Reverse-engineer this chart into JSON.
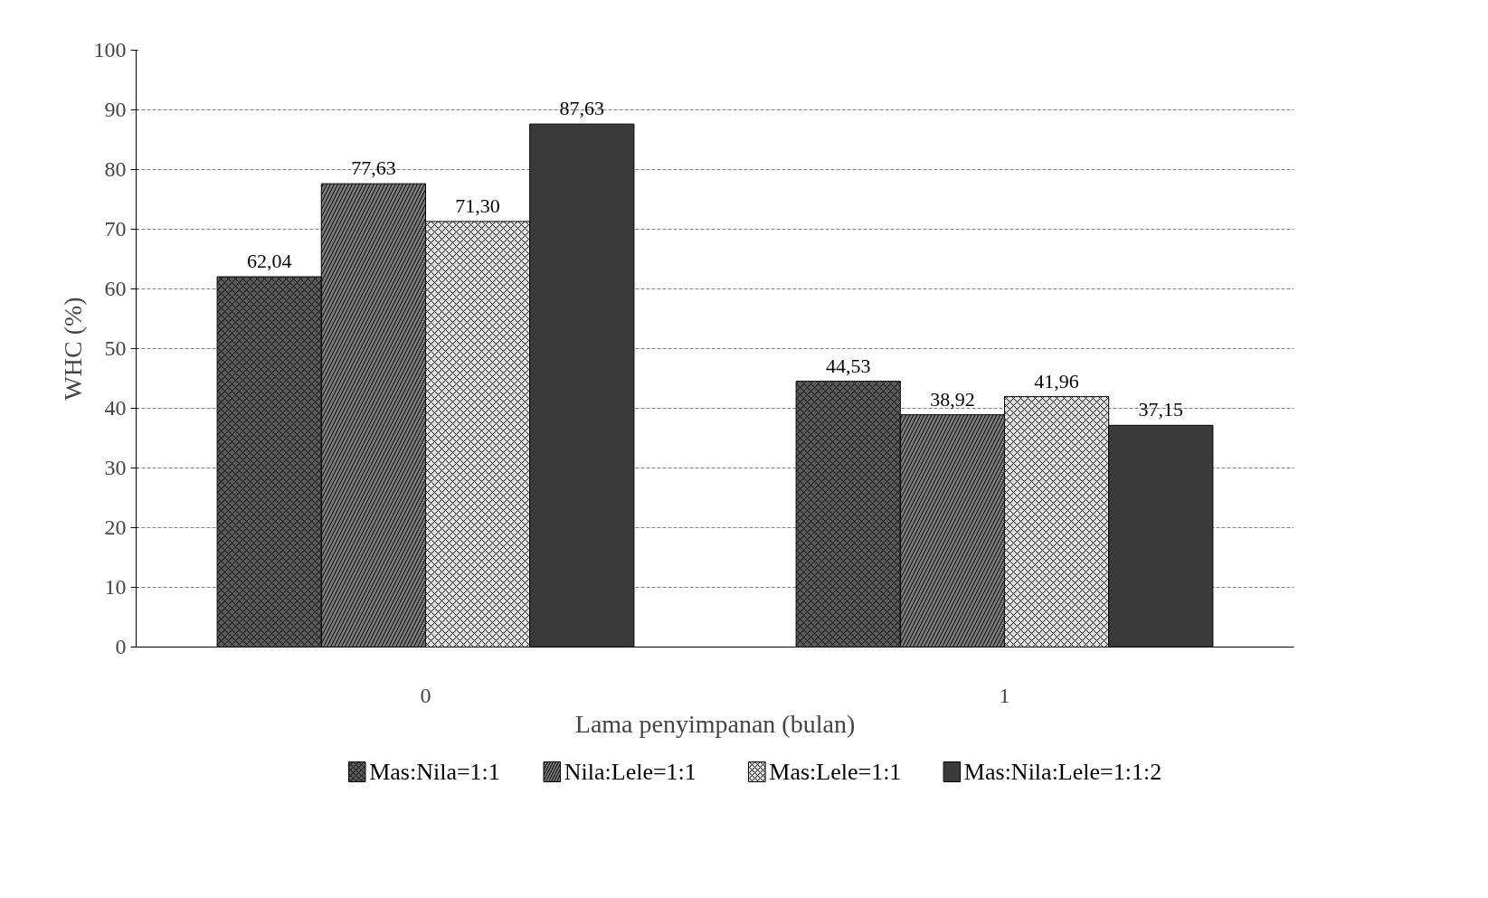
{
  "chart_data": {
    "type": "bar",
    "xlabel": "Lama penyimpanan (bulan)",
    "ylabel": "WHC (%)",
    "categories": [
      "0",
      "1"
    ],
    "series": [
      {
        "name": "Mas:Nila=1:1",
        "color": "#5a5a5a",
        "values": [
          62.04,
          44.53
        ],
        "value_labels": [
          "62,04",
          "44,53"
        ]
      },
      {
        "name": "Nila:Lele=1:1",
        "color": "#7a7a7a",
        "values": [
          77.63,
          38.92
        ],
        "value_labels": [
          "77,63",
          "38,92"
        ]
      },
      {
        "name": "Mas:Lele=1:1",
        "color": "#e0e0e0",
        "values": [
          71.3,
          41.96
        ],
        "value_labels": [
          "71,30",
          "41,96"
        ]
      },
      {
        "name": "Mas:Nila:Lele=1:1:2",
        "color": "#3a3a3a",
        "values": [
          87.63,
          37.15
        ],
        "value_labels": [
          "87,63",
          "37,15"
        ]
      }
    ],
    "ylim": [
      0,
      100
    ],
    "yticks": [
      0,
      10,
      20,
      30,
      40,
      50,
      60,
      70,
      80,
      90,
      100
    ],
    "grid": "y",
    "legend": "bottom"
  }
}
